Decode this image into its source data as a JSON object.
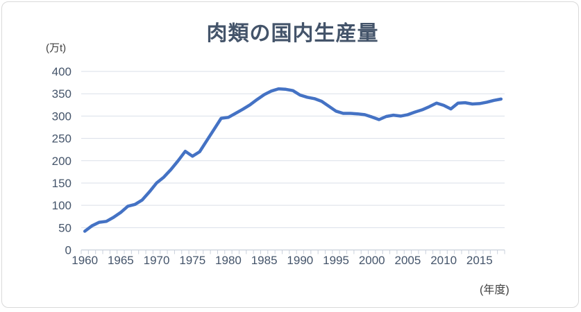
{
  "chart_data": {
    "type": "line",
    "title": "肉類の国内生産量",
    "ylabel": "(万t)",
    "xlabel": "(年度)",
    "ylim": [
      0,
      400
    ],
    "yticks": [
      0,
      50,
      100,
      150,
      200,
      250,
      300,
      350,
      400
    ],
    "xtick_labels": [
      "1960",
      "1965",
      "1970",
      "1975",
      "1980",
      "1985",
      "1990",
      "1995",
      "2000",
      "2005",
      "2010",
      "2015"
    ],
    "grid": true,
    "legend": "none",
    "x": [
      1960,
      1961,
      1962,
      1963,
      1964,
      1965,
      1966,
      1967,
      1968,
      1969,
      1970,
      1971,
      1972,
      1973,
      1974,
      1975,
      1976,
      1977,
      1978,
      1979,
      1980,
      1981,
      1982,
      1983,
      1984,
      1985,
      1986,
      1987,
      1988,
      1989,
      1990,
      1991,
      1992,
      1993,
      1994,
      1995,
      1996,
      1997,
      1998,
      1999,
      2000,
      2001,
      2002,
      2003,
      2004,
      2005,
      2006,
      2007,
      2008,
      2009,
      2010,
      2011,
      2012,
      2013,
      2014,
      2015,
      2016,
      2017,
      2018
    ],
    "series": [
      {
        "name": "肉類の国内生産量",
        "color": "#4472C4",
        "values": [
          42,
          54,
          62,
          64,
          73,
          84,
          98,
          102,
          112,
          130,
          150,
          163,
          180,
          200,
          221,
          210,
          220,
          245,
          270,
          295,
          297,
          306,
          315,
          325,
          337,
          348,
          356,
          361,
          360,
          357,
          347,
          342,
          339,
          333,
          322,
          311,
          306,
          306,
          305,
          303,
          298,
          292,
          299,
          302,
          300,
          303,
          309,
          314,
          321,
          329,
          324,
          316,
          329,
          330,
          327,
          328,
          331,
          335,
          338
        ]
      }
    ]
  },
  "colors": {
    "title": "#44546A",
    "tick_labels": "#44546A",
    "unit_labels": "#3f3f3f",
    "gridline": "#dadfe8",
    "axis": "#c9d0db",
    "line": "#4472C4",
    "background": "#ffffff",
    "border": "#d9d9d9"
  }
}
